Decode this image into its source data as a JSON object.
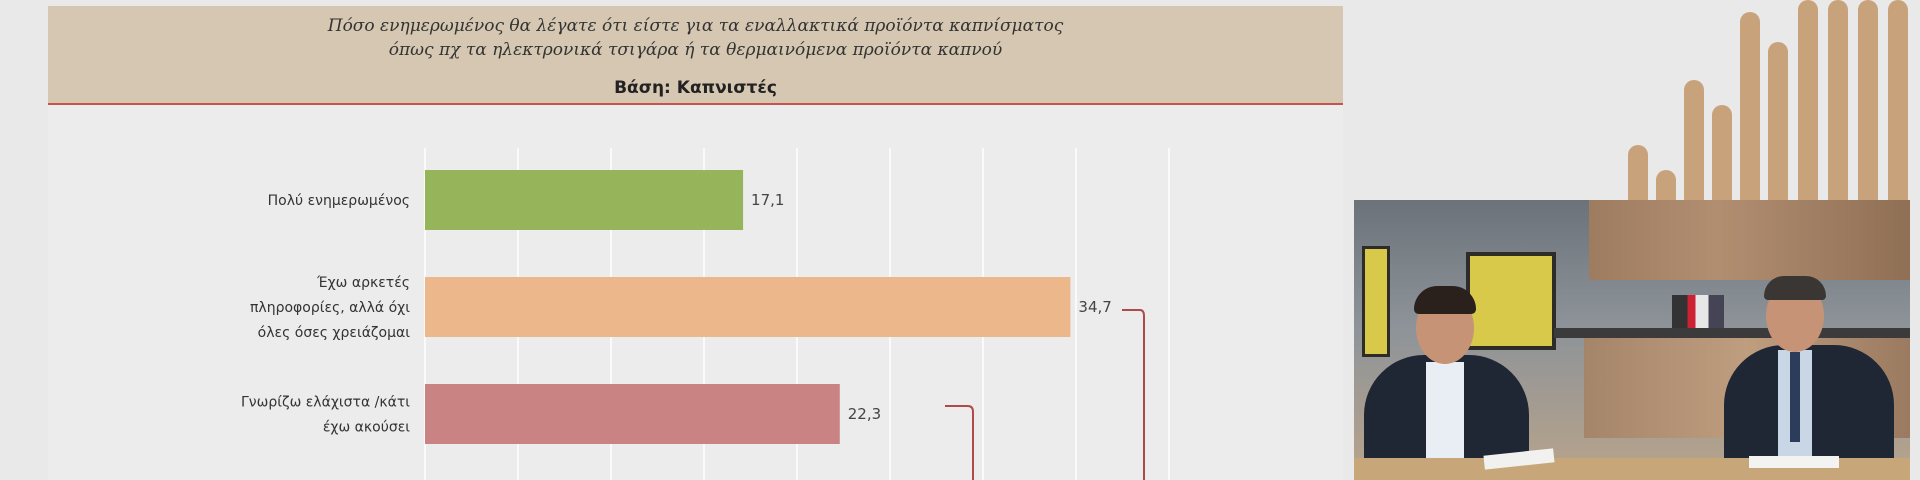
{
  "header": {
    "title_line1": "Πόσο ενημερωμένος θα λέγατε ότι είστε για τα εναλλακτικά προϊόντα καπνίσματος",
    "title_line2": "όπως πχ τα ηλεκτρονικά τσιγάρα ή τα θερμαινόμενα προϊόντα καπνού",
    "subtitle": "Βάση: Καπνιστές"
  },
  "colors": {
    "header_band": "#d5c7b1",
    "header_line": "#c9524e",
    "grid": "#ffffff",
    "bracket": "#b04a4a",
    "decor_bars": "#c8a27a"
  },
  "chart_data": {
    "type": "bar",
    "orientation": "horizontal",
    "grid": true,
    "categories": [
      [
        "Πολύ ενημερωμένος"
      ],
      [
        "Έχω αρκετές",
        "πληροφορίες, αλλά όχι",
        "όλες όσες χρειάζομαι"
      ],
      [
        "Γνωρίζω ελάχιστα /κάτι",
        "έχω ακούσει"
      ]
    ],
    "values": [
      17.1,
      34.7,
      22.3
    ],
    "value_labels": [
      "17,1",
      "34,7",
      "22,3"
    ],
    "bar_colors": [
      "#96b55a",
      "#ecb88b",
      "#c98383"
    ],
    "xlim": [
      0,
      40
    ]
  },
  "video": {
    "scene": "studio-interview"
  }
}
